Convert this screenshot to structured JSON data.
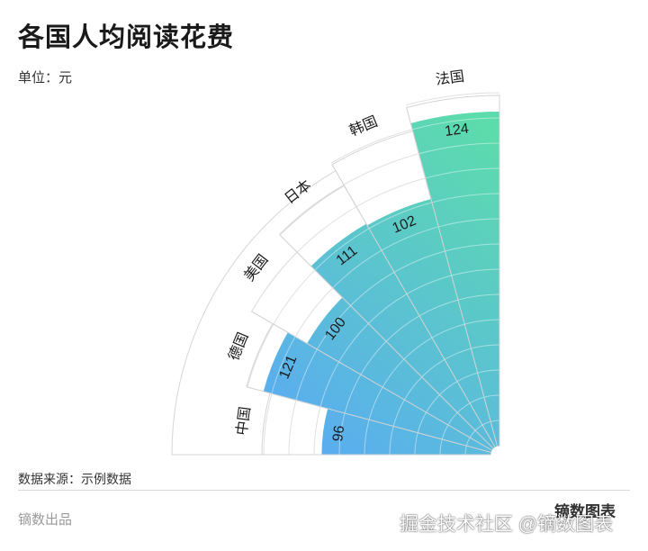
{
  "header": {
    "title": "各国人均阅读花费",
    "unit": "单位：元"
  },
  "chart_data": {
    "type": "bar",
    "layout": "polar",
    "categories": [
      "中国",
      "德国",
      "美国",
      "日本",
      "韩国",
      "法国"
    ],
    "values": [
      96,
      121,
      100,
      111,
      102,
      124
    ],
    "ylim": [
      0,
      130
    ],
    "grid": true,
    "colors": {
      "start": "#5aaaf4",
      "end": "#5cdbad"
    }
  },
  "footer": {
    "source": "数据来源：示例数据",
    "credit": "镝数出品",
    "brand": "镝数图表"
  },
  "watermark": "掘金技术社区 @镝数图表"
}
